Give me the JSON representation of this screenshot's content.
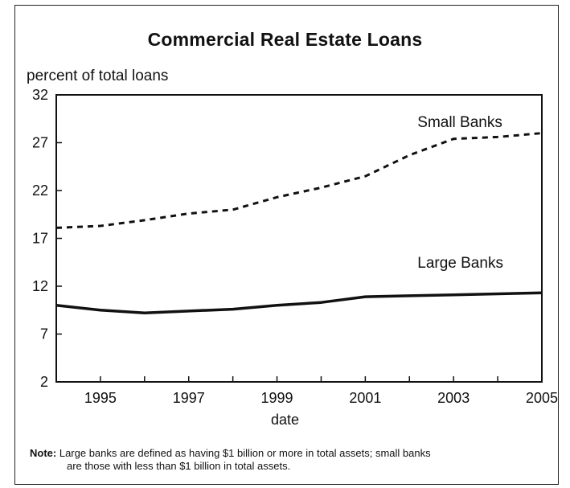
{
  "chart_data": {
    "type": "line",
    "title": "Commercial Real Estate Loans",
    "ylabel": "percent of total loans",
    "xlabel": "date",
    "xlim": [
      1994,
      2005
    ],
    "ylim": [
      2,
      32
    ],
    "x_ticks": [
      1995,
      1997,
      1999,
      2001,
      2003,
      2005
    ],
    "y_ticks": [
      2,
      7,
      12,
      17,
      22,
      27,
      32
    ],
    "grid": false,
    "series": [
      {
        "name": "Small Banks",
        "style": "dashed",
        "color": "#111111",
        "label_text": "Small Banks",
        "x": [
          1994,
          1995,
          1996,
          1997,
          1998,
          1999,
          2000,
          2001,
          2002,
          2003,
          2004,
          2005
        ],
        "values": [
          18.1,
          18.3,
          18.9,
          19.6,
          20.0,
          21.3,
          22.3,
          23.5,
          25.7,
          27.4,
          27.6,
          28.0
        ]
      },
      {
        "name": "Large Banks",
        "style": "solid",
        "color": "#111111",
        "label_text": "Large Banks",
        "x": [
          1994,
          1995,
          1996,
          1997,
          1998,
          1999,
          2000,
          2001,
          2002,
          2003,
          2004,
          2005
        ],
        "values": [
          10.0,
          9.5,
          9.2,
          9.4,
          9.6,
          10.0,
          10.3,
          10.9,
          11.0,
          11.1,
          11.2,
          11.3
        ]
      }
    ]
  },
  "note": {
    "prefix": "Note:",
    "line1": "Large banks are defined as having $1 billion or more in total assets; small banks",
    "line2": "are those with less than $1 billion in total assets."
  }
}
